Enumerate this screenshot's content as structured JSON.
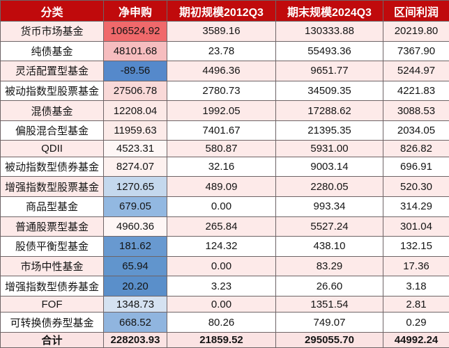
{
  "colors": {
    "header_bg": "#c00a0c",
    "header_text": "#ffffff",
    "stripe_pink": "#fdeae9",
    "row_white": "#ffffff",
    "total_bg": "#fbe3e3",
    "border": "#6e6466",
    "text": "#141414",
    "net_scale_max_red": "#f0696b",
    "net_scale_min_blue": "#5589cb"
  },
  "table": {
    "columns": [
      "分类",
      "净申购",
      "期初规模2012Q3",
      "期末规模2024Q3",
      "区间利润"
    ],
    "rows": [
      {
        "category": "货币市场基金",
        "net": "106524.92",
        "net_bg": "#f0696b",
        "start": "3589.16",
        "end": "130333.88",
        "profit": "20219.80"
      },
      {
        "category": "纯债基金",
        "net": "48101.68",
        "net_bg": "#f6bdbf",
        "start": "23.78",
        "end": "55493.36",
        "profit": "7367.90"
      },
      {
        "category": "灵活配置型基金",
        "net": "-89.56",
        "net_bg": "#5589cb",
        "start": "4496.36",
        "end": "9651.77",
        "profit": "5244.97"
      },
      {
        "category": "被动指数型股票基金",
        "net": "27506.78",
        "net_bg": "#f9d9d8",
        "start": "2780.73",
        "end": "34509.35",
        "profit": "4221.83"
      },
      {
        "category": "混债基金",
        "net": "12208.04",
        "net_bg": "#fce9e7",
        "start": "1992.05",
        "end": "17288.62",
        "profit": "3088.53"
      },
      {
        "category": "偏股混合型基金",
        "net": "11959.63",
        "net_bg": "#fcebe9",
        "start": "7401.67",
        "end": "21395.35",
        "profit": "2034.05"
      },
      {
        "category": "QDII",
        "net": "4523.31",
        "net_bg": "#fef7f6",
        "start": "580.87",
        "end": "5931.00",
        "profit": "826.82"
      },
      {
        "category": "被动指数型债券基金",
        "net": "8274.07",
        "net_bg": "#fdf1ef",
        "start": "32.16",
        "end": "9003.14",
        "profit": "696.91"
      },
      {
        "category": "增强指数型股票基金",
        "net": "1270.65",
        "net_bg": "#c4d8ed",
        "start": "489.09",
        "end": "2280.05",
        "profit": "520.30"
      },
      {
        "category": "商品型基金",
        "net": "679.05",
        "net_bg": "#92b8e1",
        "start": "0.00",
        "end": "993.34",
        "profit": "314.29"
      },
      {
        "category": "普通股票型基金",
        "net": "4960.36",
        "net_bg": "#fef6f5",
        "start": "265.84",
        "end": "5527.24",
        "profit": "301.04"
      },
      {
        "category": "股债平衡型基金",
        "net": "181.62",
        "net_bg": "#6899d0",
        "start": "124.32",
        "end": "438.10",
        "profit": "132.15"
      },
      {
        "category": "市场中性基金",
        "net": "65.94",
        "net_bg": "#6195cd",
        "start": "0.00",
        "end": "83.29",
        "profit": "17.36"
      },
      {
        "category": "增强指数型债券基金",
        "net": "20.20",
        "net_bg": "#5a8fca",
        "start": "3.23",
        "end": "26.60",
        "profit": "3.18"
      },
      {
        "category": "FOF",
        "net": "1348.73",
        "net_bg": "#d5e2f1",
        "start": "0.00",
        "end": "1351.54",
        "profit": "2.81"
      },
      {
        "category": "可转换债券型基金",
        "net": "668.52",
        "net_bg": "#90b5df",
        "start": "80.26",
        "end": "749.07",
        "profit": "0.29"
      }
    ],
    "total": {
      "category": "合计",
      "net": "228203.93",
      "start": "21859.52",
      "end": "295055.70",
      "profit": "44992.24"
    }
  }
}
